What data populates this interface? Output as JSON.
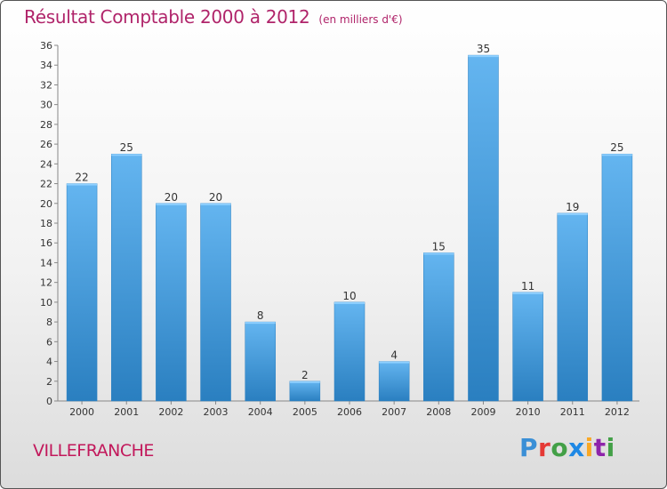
{
  "title": "Résultat Comptable 2000 à 2012",
  "unit_note": "(en milliers d'€)",
  "commune": "VILLEFRANCHE",
  "brand": "Proxiti",
  "colors": {
    "title": "#b0246a",
    "bar_light": "#64b5f0",
    "bar_dark": "#2a7fc0"
  },
  "chart_data": {
    "type": "bar",
    "title": "Résultat Comptable 2000 à 2012",
    "xlabel": "",
    "ylabel": "",
    "categories": [
      "2000",
      "2001",
      "2002",
      "2003",
      "2004",
      "2005",
      "2006",
      "2007",
      "2008",
      "2009",
      "2010",
      "2011",
      "2012"
    ],
    "values": [
      22,
      25,
      20,
      20,
      8,
      2,
      10,
      4,
      15,
      35,
      11,
      19,
      25
    ],
    "ylim": [
      0,
      36
    ],
    "ytick_step": 2,
    "grid": false,
    "legend": "none"
  }
}
